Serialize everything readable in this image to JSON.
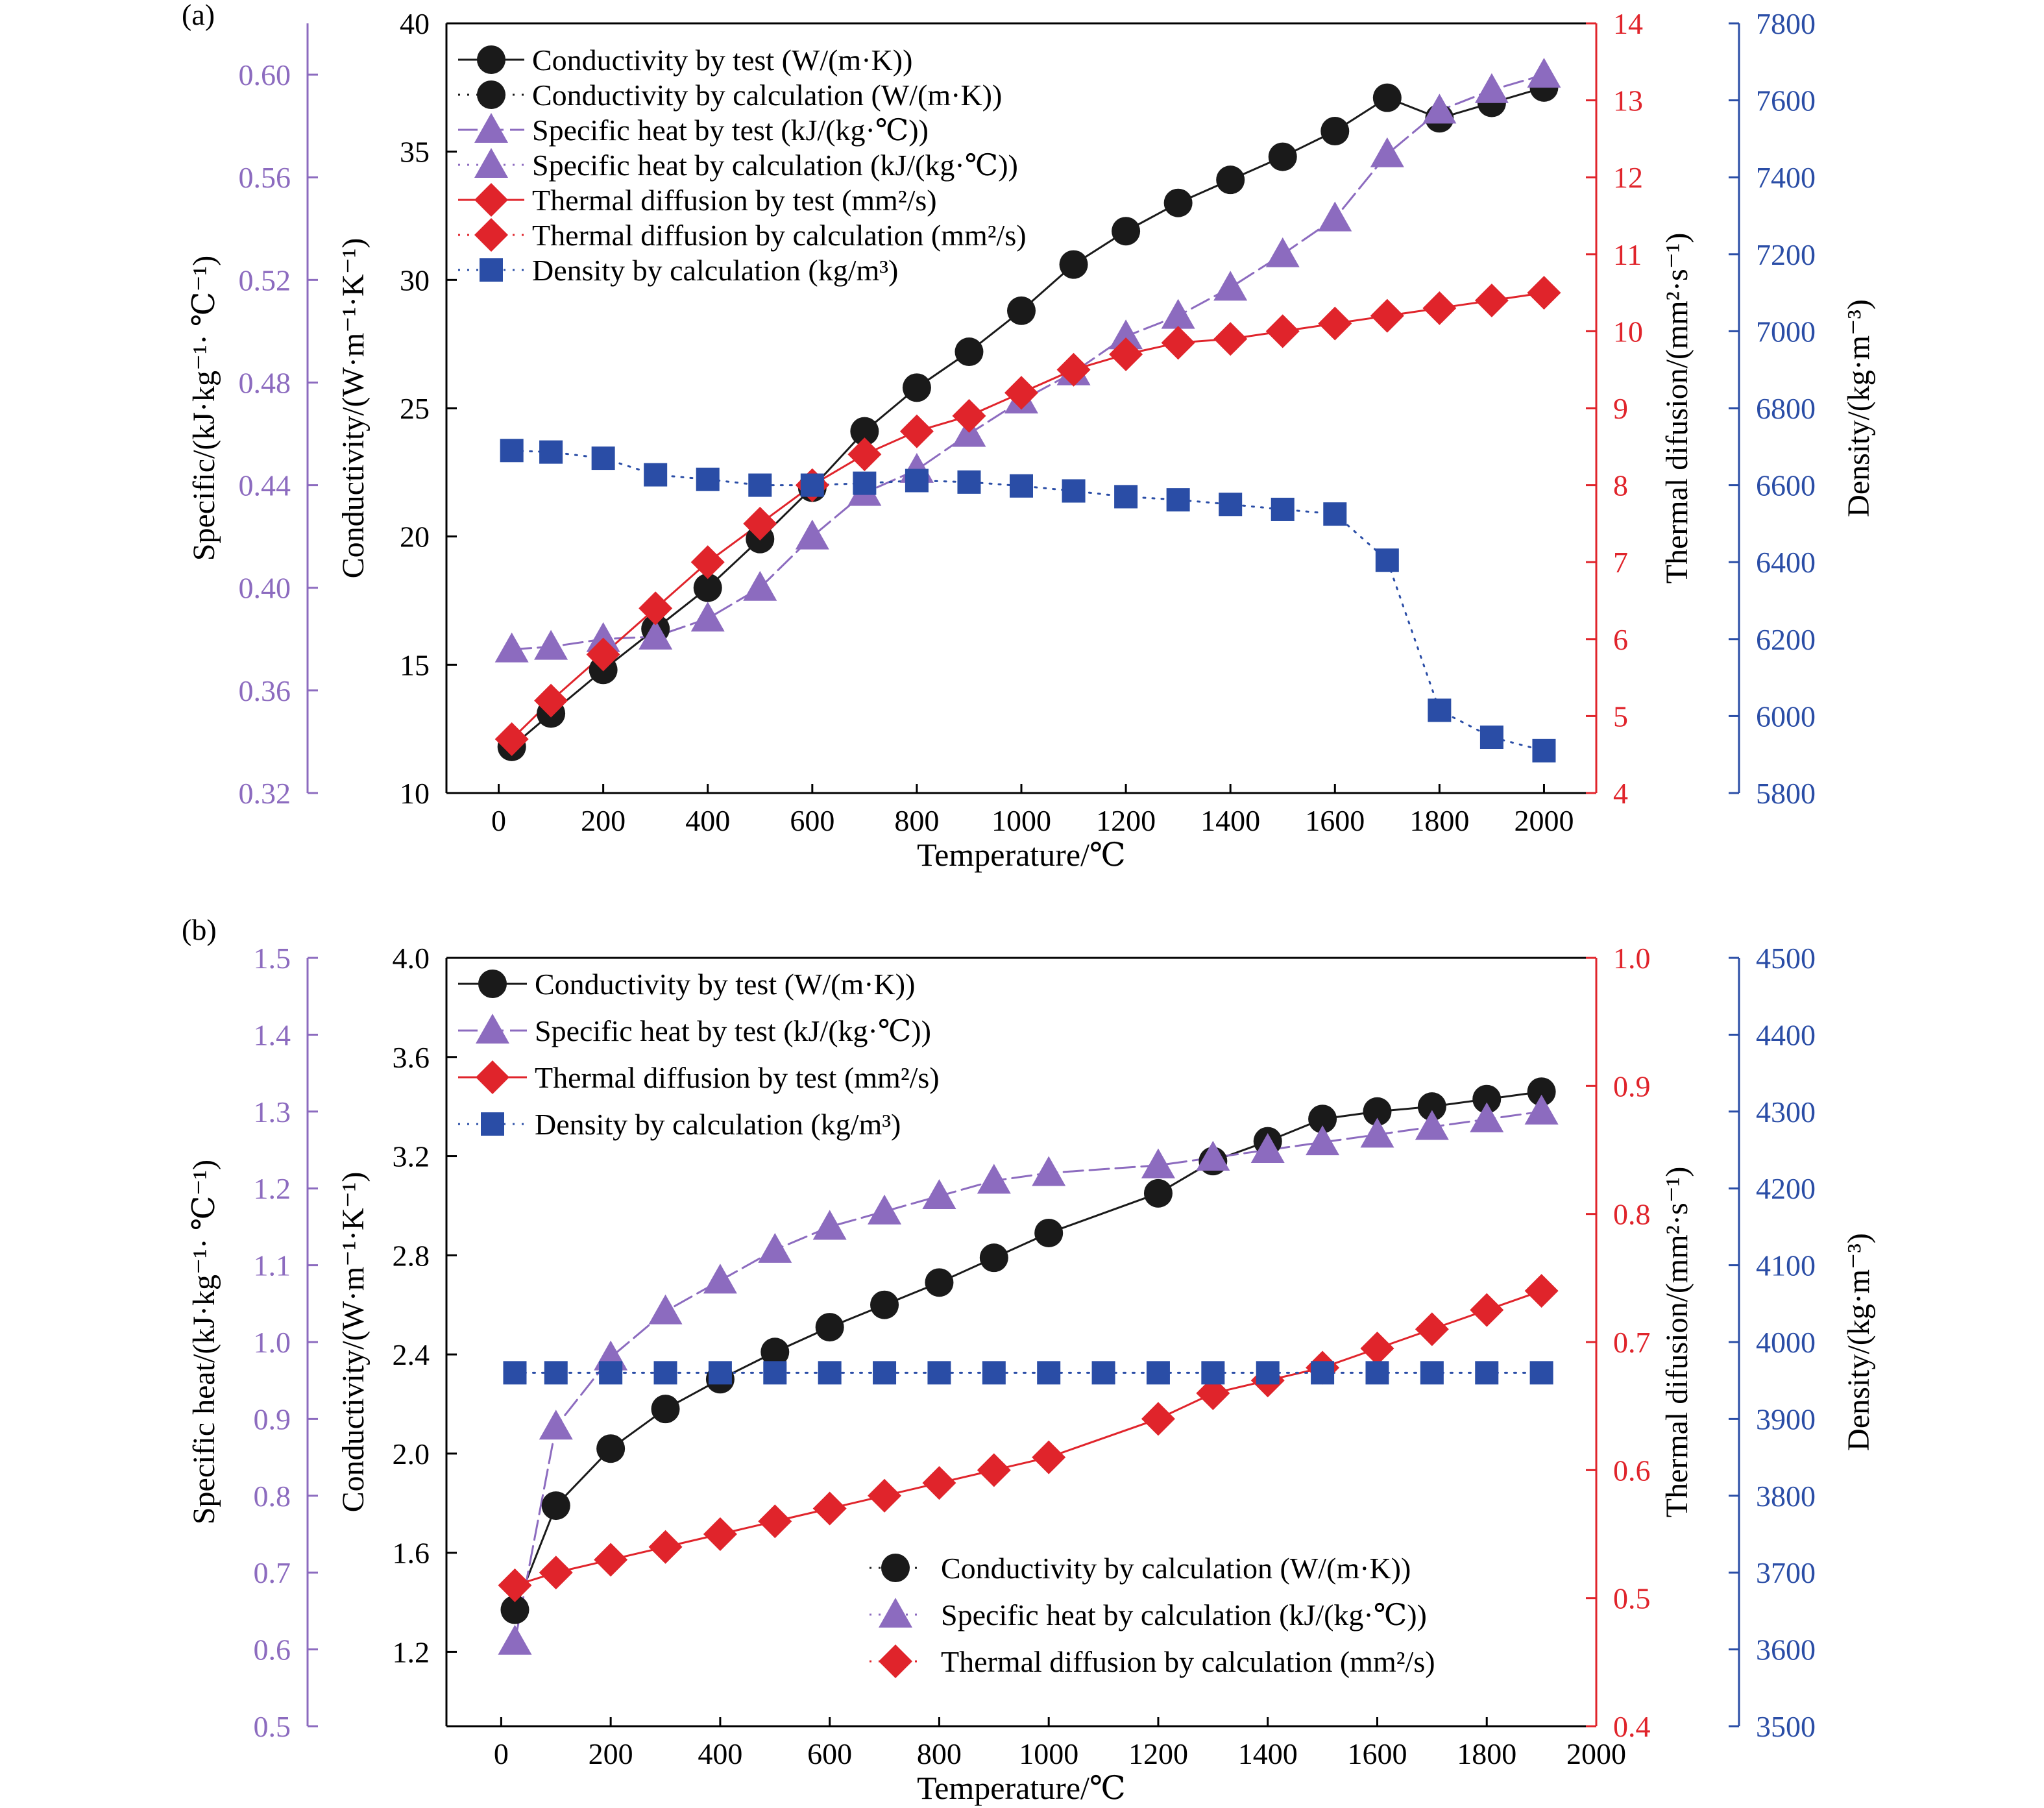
{
  "chart_data": [
    {
      "panel_label": "(a)",
      "type": "line",
      "xlabel": "Temperature/℃",
      "xlim": [
        -100,
        2100
      ],
      "xticks": [
        0,
        200,
        400,
        600,
        800,
        1000,
        1200,
        1400,
        1600,
        1800,
        2000
      ],
      "x": [
        25,
        100,
        200,
        300,
        400,
        500,
        600,
        700,
        800,
        900,
        1000,
        1100,
        1200,
        1300,
        1400,
        1500,
        1600,
        1700,
        1800,
        1900,
        2000
      ],
      "axes": {
        "specific": {
          "label": "Specific/(kJ·kg⁻¹· ℃⁻¹)",
          "lim": [
            0.32,
            0.62
          ],
          "ticks": [
            "0.32",
            "0.36",
            "0.40",
            "0.44",
            "0.48",
            "0.52",
            "0.56",
            "0.60"
          ],
          "color": "#8c6bbf"
        },
        "conductivity": {
          "label": "Conductivity/(W·m⁻¹·K⁻¹)",
          "lim": [
            10,
            40
          ],
          "ticks": [
            "10",
            "15",
            "20",
            "25",
            "30",
            "35",
            "40"
          ],
          "color": "#000000"
        },
        "diffusion": {
          "label": "Thermal difusion/(mm²·s⁻¹)",
          "lim": [
            4,
            14
          ],
          "ticks": [
            "4",
            "5",
            "6",
            "7",
            "8",
            "9",
            "10",
            "11",
            "12",
            "13",
            "14"
          ],
          "color": "#e0242b"
        },
        "density": {
          "label": "Density/(kg·m⁻³)",
          "lim": [
            5800,
            7800
          ],
          "ticks": [
            "5800",
            "6000",
            "6200",
            "6400",
            "6600",
            "6800",
            "7000",
            "7200",
            "7400",
            "7600",
            "7800"
          ],
          "color": "#2a4da6"
        }
      },
      "series": [
        {
          "name": "Conductivity by test (W/(m·K))",
          "axis": "conductivity",
          "marker": "circle",
          "line": "solid",
          "color": "#1a1a1a",
          "x": [
            25,
            100,
            200,
            300,
            400,
            500,
            600,
            700,
            800,
            900,
            1000,
            1100,
            1200,
            1300,
            1400,
            1500,
            1600,
            1700,
            1800,
            1900,
            2000
          ],
          "values": [
            11.8,
            13.1,
            14.8,
            16.4,
            18.0,
            19.9,
            21.9,
            24.1,
            25.8,
            27.2,
            28.8,
            30.6,
            31.9,
            33.0,
            33.9,
            34.8,
            35.8,
            37.1,
            36.3,
            36.9,
            37.5
          ]
        },
        {
          "name": "Conductivity by calculation (W/(m·K))",
          "axis": "conductivity",
          "marker": "circle",
          "line": "dotted",
          "color": "#1a1a1a",
          "x": [],
          "values": []
        },
        {
          "name": "Specific heat by test (kJ/(kg·℃))",
          "axis": "specific",
          "marker": "triangle",
          "line": "dash",
          "color": "#8c6bbf",
          "x": [
            25,
            100,
            200,
            300,
            400,
            500,
            600,
            700,
            800,
            900,
            1000,
            1100,
            1200,
            1300,
            1400,
            1500,
            1600,
            1700,
            1800,
            1900,
            2000
          ],
          "values": [
            0.376,
            0.377,
            0.38,
            0.381,
            0.388,
            0.4,
            0.42,
            0.437,
            0.446,
            0.46,
            0.473,
            0.484,
            0.498,
            0.506,
            0.517,
            0.53,
            0.544,
            0.569,
            0.586,
            0.594,
            0.6
          ]
        },
        {
          "name": "Specific heat by calculation (kJ/(kg·℃))",
          "axis": "specific",
          "marker": "triangle",
          "line": "dotted",
          "color": "#8c6bbf",
          "x": [],
          "values": []
        },
        {
          "name": "Thermal diffusion by test (mm²/s)",
          "axis": "diffusion",
          "marker": "diamond",
          "line": "solid",
          "color": "#e0242b",
          "x": [
            25,
            100,
            200,
            300,
            400,
            500,
            600,
            700,
            800,
            900,
            1000,
            1100,
            1200,
            1300,
            1400,
            1500,
            1600,
            1700,
            1800,
            1900,
            2000
          ],
          "values": [
            4.7,
            5.2,
            5.8,
            6.4,
            7.0,
            7.5,
            8.0,
            8.4,
            8.7,
            8.9,
            9.2,
            9.5,
            9.7,
            9.85,
            9.9,
            10.0,
            10.1,
            10.2,
            10.3,
            10.4,
            10.5
          ]
        },
        {
          "name": "Thermal diffusion by calculation (mm²/s)",
          "axis": "diffusion",
          "marker": "diamond",
          "line": "dotted",
          "color": "#e0242b",
          "x": [],
          "values": []
        },
        {
          "name": "Density by calculation (kg/m³)",
          "axis": "density",
          "marker": "square",
          "line": "dotted",
          "color": "#2a4da6",
          "x": [
            25,
            100,
            200,
            300,
            400,
            500,
            600,
            700,
            800,
            900,
            1000,
            1100,
            1200,
            1300,
            1400,
            1500,
            1600,
            1700,
            1800,
            1900,
            2000
          ],
          "values": [
            6690,
            6686,
            6670,
            6627,
            6615,
            6600,
            6600,
            6605,
            6612,
            6608,
            6598,
            6585,
            6570,
            6562,
            6550,
            6537,
            6525,
            6405,
            6015,
            5945,
            5910
          ]
        }
      ]
    },
    {
      "panel_label": "(b)",
      "type": "line",
      "xlabel": "Temperature/℃",
      "xlim": [
        -100,
        2000
      ],
      "xticks": [
        0,
        200,
        400,
        600,
        800,
        1000,
        1200,
        1400,
        1600,
        1800,
        2000
      ],
      "x": [
        25,
        100,
        200,
        300,
        400,
        500,
        600,
        700,
        800,
        900,
        1000,
        1100,
        1200,
        1300,
        1400,
        1500,
        1600,
        1700,
        1800,
        1900
      ],
      "axes": {
        "specific": {
          "label": "Specific heat/(kJ·kg⁻¹· ℃⁻¹)",
          "lim": [
            0.5,
            1.5
          ],
          "ticks": [
            "0.5",
            "0.6",
            "0.7",
            "0.8",
            "0.9",
            "1.0",
            "1.1",
            "1.2",
            "1.3",
            "1.4",
            "1.5"
          ],
          "color": "#8c6bbf"
        },
        "conductivity": {
          "label": "Conductivity/(W·m⁻¹·K⁻¹)",
          "lim": [
            0.9,
            4.0
          ],
          "ticks": [
            "1.2",
            "1.6",
            "2.0",
            "2.4",
            "2.8",
            "3.2",
            "3.6",
            "4.0"
          ],
          "color": "#000000"
        },
        "diffusion": {
          "label": "Thermal difusion/(mm²·s⁻¹)",
          "lim": [
            0.4,
            1.0
          ],
          "ticks": [
            "0.4",
            "0.5",
            "0.6",
            "0.7",
            "0.8",
            "0.9",
            "1.0"
          ],
          "color": "#e0242b"
        },
        "density": {
          "label": "Density/(kg·m⁻³)",
          "lim": [
            3500,
            4500
          ],
          "ticks": [
            "3500",
            "3600",
            "3700",
            "3800",
            "3900",
            "4000",
            "4100",
            "4200",
            "4300",
            "4400",
            "4500"
          ],
          "color": "#2a4da6"
        }
      },
      "series": [
        {
          "name": "Conductivity by test (W/(m·K))",
          "axis": "conductivity",
          "marker": "circle",
          "line": "solid",
          "color": "#1a1a1a",
          "x": [
            25,
            100,
            200,
            300,
            400,
            500,
            600,
            700,
            800,
            900,
            1000,
            1200,
            1300,
            1400,
            1500,
            1600,
            1700,
            1800,
            1900
          ],
          "values": [
            1.37,
            1.79,
            2.02,
            2.18,
            2.3,
            2.41,
            2.51,
            2.6,
            2.69,
            2.79,
            2.89,
            3.05,
            3.18,
            3.26,
            3.35,
            3.38,
            3.4,
            3.43,
            3.46
          ]
        },
        {
          "name": "Specific heat by test (kJ/(kg·℃))",
          "axis": "specific",
          "marker": "triangle",
          "line": "dash",
          "color": "#8c6bbf",
          "x": [
            25,
            100,
            200,
            300,
            400,
            500,
            600,
            700,
            800,
            900,
            1000,
            1200,
            1300,
            1400,
            1500,
            1600,
            1700,
            1800,
            1900
          ],
          "values": [
            0.61,
            0.89,
            0.98,
            1.04,
            1.08,
            1.12,
            1.15,
            1.17,
            1.19,
            1.21,
            1.22,
            1.23,
            1.24,
            1.25,
            1.26,
            1.27,
            1.28,
            1.29,
            1.3
          ]
        },
        {
          "name": "Thermal diffusion by test (mm²/s)",
          "axis": "diffusion",
          "marker": "diamond",
          "line": "solid",
          "color": "#e0242b",
          "x": [
            25,
            100,
            200,
            300,
            400,
            500,
            600,
            700,
            800,
            900,
            1000,
            1200,
            1300,
            1400,
            1500,
            1600,
            1700,
            1800,
            1900
          ],
          "values": [
            0.51,
            0.52,
            0.53,
            0.54,
            0.55,
            0.56,
            0.57,
            0.58,
            0.59,
            0.6,
            0.61,
            0.64,
            0.66,
            0.67,
            0.68,
            0.695,
            0.71,
            0.725,
            0.74
          ]
        },
        {
          "name": "Density by calculation (kg/m³)",
          "axis": "density",
          "marker": "square",
          "line": "dotted",
          "color": "#2a4da6",
          "x": [
            25,
            100,
            200,
            300,
            400,
            500,
            600,
            700,
            800,
            900,
            1000,
            1100,
            1200,
            1300,
            1400,
            1500,
            1600,
            1700,
            1800,
            1900
          ],
          "values": [
            3960,
            3960,
            3960,
            3960,
            3960,
            3960,
            3960,
            3960,
            3960,
            3960,
            3960,
            3960,
            3960,
            3960,
            3960,
            3960,
            3960,
            3960,
            3960,
            3960
          ]
        }
      ],
      "legend_lower": [
        {
          "name": "Conductivity by calculation (W/(m·K))",
          "marker": "circle",
          "color": "#1a1a1a"
        },
        {
          "name": "Specific heat by calculation (kJ/(kg·℃))",
          "marker": "triangle",
          "color": "#8c6bbf"
        },
        {
          "name": "Thermal diffusion by calculation (mm²/s)",
          "marker": "diamond",
          "color": "#e0242b"
        }
      ]
    }
  ]
}
